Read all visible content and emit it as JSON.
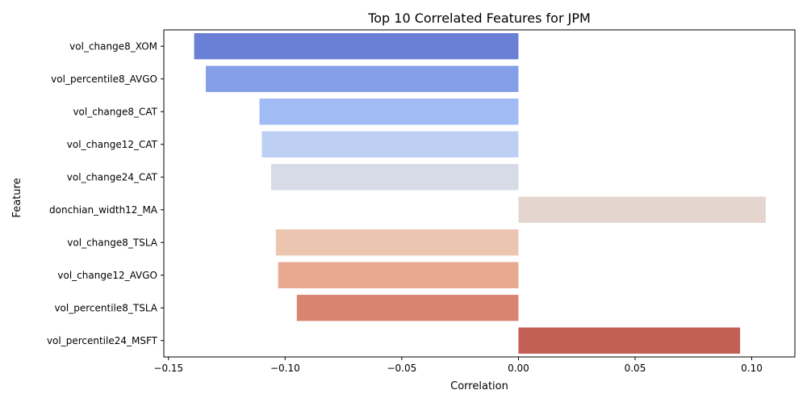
{
  "chart_data": {
    "type": "bar",
    "orientation": "horizontal",
    "title": "Top 10 Correlated Features for JPM",
    "xlabel": "Correlation",
    "ylabel": "Feature",
    "categories": [
      "vol_change8_XOM",
      "vol_percentile8_AVGO",
      "vol_change8_CAT",
      "vol_change12_CAT",
      "vol_change24_CAT",
      "donchian_width12_MA",
      "vol_change8_TSLA",
      "vol_change12_AVGO",
      "vol_percentile8_TSLA",
      "vol_percentile24_MSFT"
    ],
    "values": [
      -0.139,
      -0.134,
      -0.111,
      -0.11,
      -0.106,
      0.106,
      -0.104,
      -0.103,
      -0.095,
      0.095
    ],
    "colors": [
      "#6a80d6",
      "#849fe8",
      "#a1bbf5",
      "#bdd0f4",
      "#d6dbe6",
      "#e4d6ce",
      "#ecc5b0",
      "#e8a990",
      "#d98470",
      "#c45f56"
    ],
    "xlim": [
      -0.152,
      0.1185
    ],
    "xticks": [
      -0.15,
      -0.1,
      -0.05,
      0.0,
      0.05,
      0.1
    ],
    "xtick_labels": [
      "−0.15",
      "−0.10",
      "−0.05",
      "0.00",
      "0.05",
      "0.10"
    ],
    "grid": false,
    "legend": "none"
  }
}
